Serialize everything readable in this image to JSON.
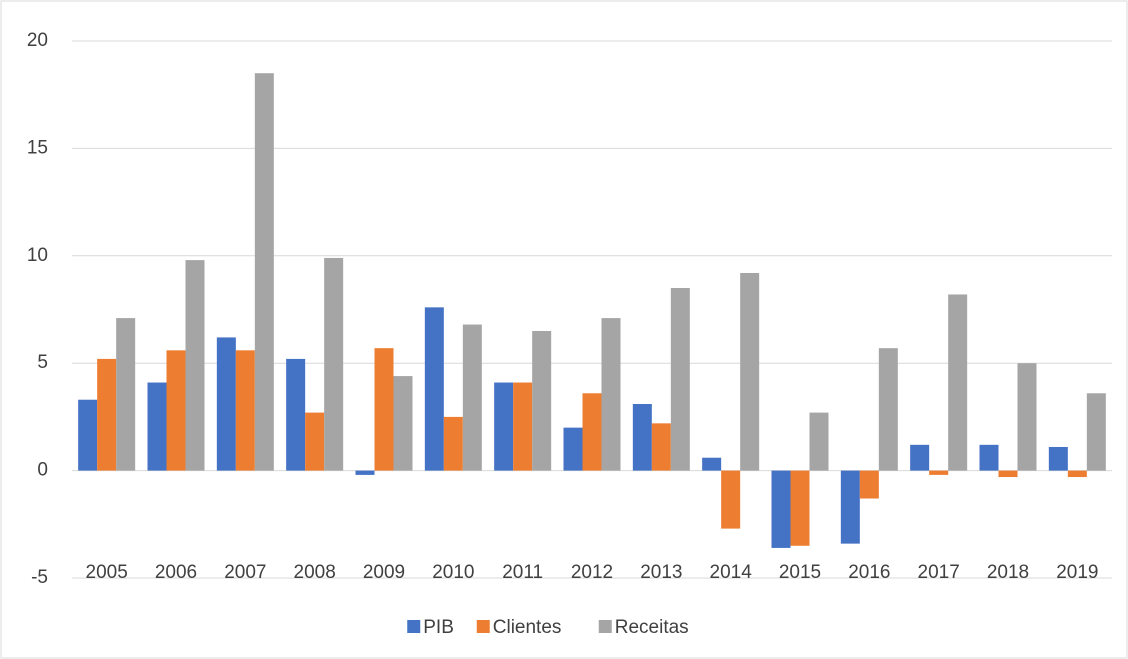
{
  "chart_data": {
    "type": "bar",
    "categories": [
      "2005",
      "2006",
      "2007",
      "2008",
      "2009",
      "2010",
      "2011",
      "2012",
      "2013",
      "2014",
      "2015",
      "2016",
      "2017",
      "2018",
      "2019"
    ],
    "series": [
      {
        "name": "PIB",
        "color": "#4472c4",
        "values": [
          3.3,
          4.1,
          6.2,
          5.2,
          -0.2,
          7.6,
          4.1,
          2.0,
          3.1,
          0.6,
          -3.6,
          -3.4,
          1.2,
          1.2,
          1.1
        ]
      },
      {
        "name": "Clientes",
        "color": "#ed7d31",
        "values": [
          5.2,
          5.6,
          5.6,
          2.7,
          5.7,
          2.5,
          4.1,
          3.6,
          2.2,
          -2.7,
          -3.5,
          -1.3,
          -0.2,
          -0.3,
          -0.3
        ]
      },
      {
        "name": "Receitas",
        "color": "#a5a5a5",
        "values": [
          7.1,
          9.8,
          18.5,
          9.9,
          4.4,
          6.8,
          6.5,
          7.1,
          8.5,
          9.2,
          2.7,
          5.7,
          8.2,
          5.0,
          3.6
        ]
      }
    ],
    "ylim": [
      -5,
      20
    ],
    "yticks": [
      -5,
      0,
      5,
      10,
      15,
      20
    ],
    "grid": true,
    "legend": "bottom"
  }
}
